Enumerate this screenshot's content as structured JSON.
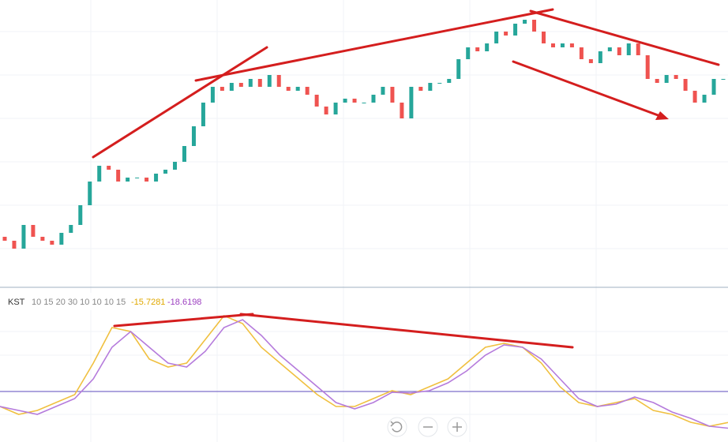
{
  "chart_data": [
    {
      "type": "candlestick",
      "up_color": "#26a69a",
      "down_color": "#ef5350",
      "ylim": [
        0,
        360
      ],
      "values": [
        60,
        55,
        45,
        75,
        60,
        55,
        50,
        65,
        75,
        100,
        130,
        150,
        145,
        130,
        135,
        135,
        130,
        140,
        145,
        155,
        175,
        200,
        230,
        250,
        245,
        255,
        250,
        260,
        250,
        265,
        250,
        245,
        250,
        240,
        225,
        215,
        230,
        235,
        230,
        230,
        240,
        250,
        230,
        210,
        250,
        245,
        255,
        255,
        260,
        285,
        300,
        295,
        305,
        320,
        315,
        330,
        335,
        320,
        305,
        300,
        305,
        300,
        285,
        280,
        295,
        300,
        290,
        305,
        290,
        260,
        255,
        265,
        260,
        245,
        230,
        240,
        260,
        260
      ]
    },
    {
      "type": "line",
      "title": "KST",
      "parameters": "10 15 20 30 10 10 10 15",
      "ylim": [
        -25.6,
        52.4
      ],
      "reference_line": 0,
      "reference_color": "#7e6fc9",
      "series": [
        {
          "color": "#f0c040",
          "values": [
            -7.6,
            -11.6,
            -9.6,
            -5.6,
            -1.6,
            14.4,
            32.4,
            30.4,
            16.4,
            12.4,
            14.4,
            26.4,
            38.4,
            34.4,
            22.4,
            14.4,
            6.4,
            -1.6,
            -7.6,
            -7.6,
            -3.6,
            0.4,
            -1.6,
            2.4,
            6.4,
            14.4,
            22.4,
            24.4,
            22.4,
            14.4,
            2.4,
            -5.6,
            -7.6,
            -5.6,
            -3.6,
            -9.6,
            -11.6,
            -15.6,
            -17.6,
            -15.7281
          ]
        },
        {
          "color": "#b57bdc",
          "values": [
            -7.6,
            -9.6,
            -11.6,
            -7.6,
            -3.6,
            6.4,
            22.4,
            30.4,
            22.4,
            14.4,
            12.4,
            20.4,
            32.4,
            36.4,
            28.4,
            18.4,
            10.4,
            2.4,
            -5.6,
            -8.8,
            -5.6,
            -0.4,
            -0.8,
            0.4,
            4.4,
            10.4,
            18.4,
            23.6,
            22.4,
            16.4,
            6.4,
            -3.6,
            -7.6,
            -6.4,
            -2.8,
            -5.6,
            -10.4,
            -13.6,
            -17.6,
            -18.6198
          ]
        }
      ]
    }
  ]
}
